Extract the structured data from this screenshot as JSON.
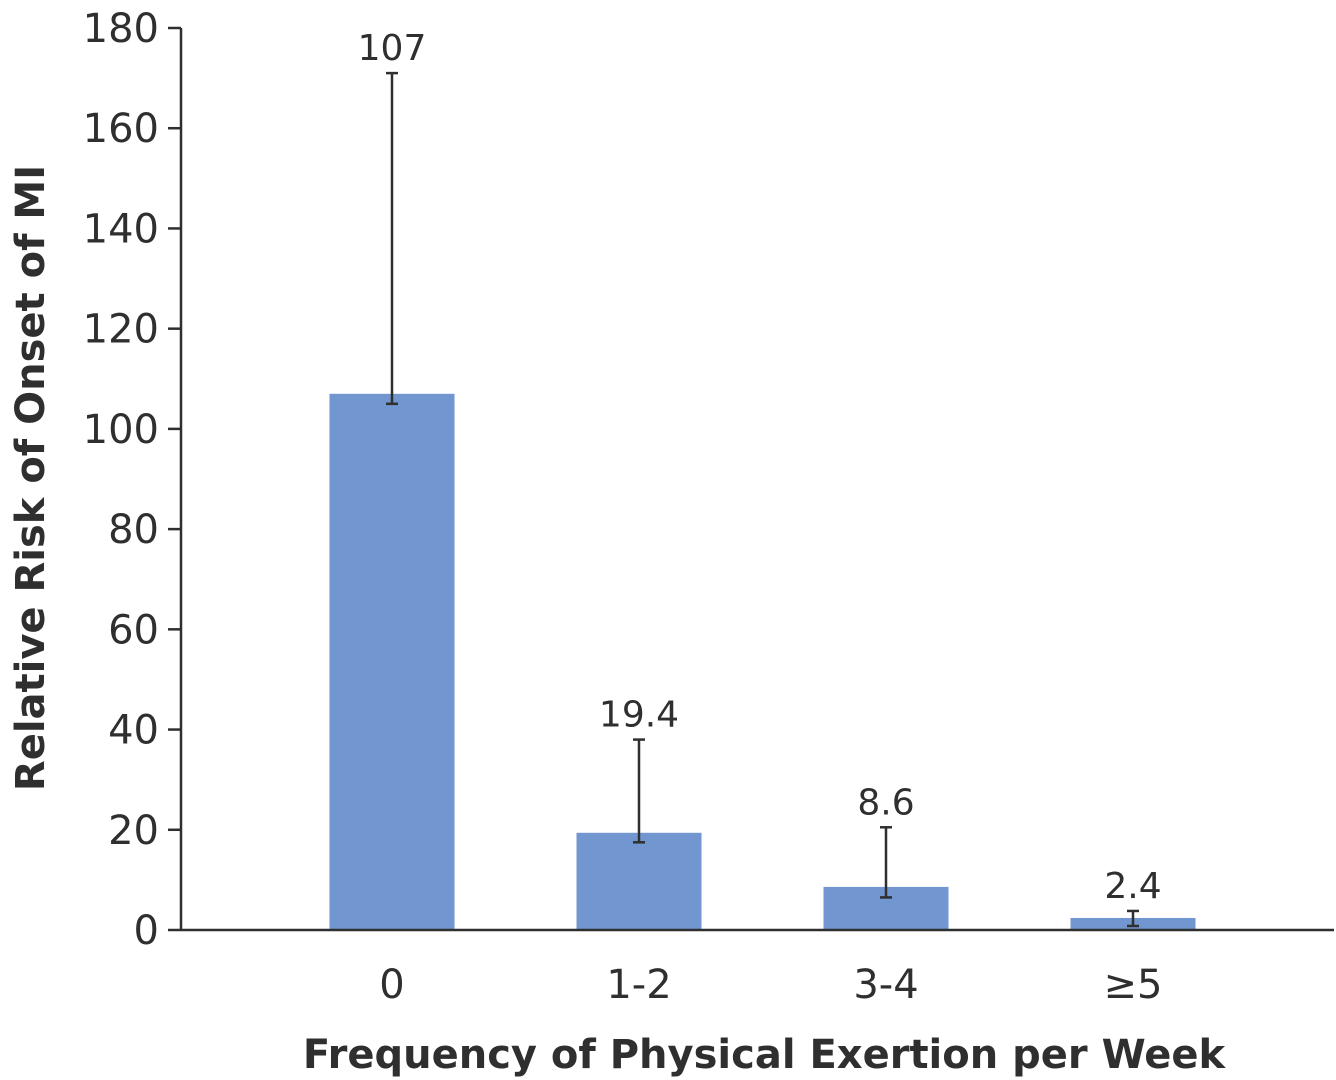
{
  "chart_data": {
    "type": "bar",
    "categories": [
      "0",
      "1-2",
      "3-4",
      "≥5"
    ],
    "values": [
      107,
      19.4,
      8.6,
      2.4
    ],
    "value_labels": [
      "107",
      "19.4",
      "8.6",
      "2.4"
    ],
    "error_bars": {
      "lower": [
        105,
        17.5,
        6.5,
        0.8
      ],
      "upper": [
        171,
        38,
        20.5,
        3.8
      ]
    },
    "xlabel": "Frequency of Physical Exertion per Week",
    "ylabel": "Relative Risk of Onset of MI",
    "ylim": [
      0,
      180
    ],
    "yticks": [
      0,
      20,
      40,
      60,
      80,
      100,
      120,
      140,
      160,
      180
    ],
    "grid": false,
    "colors": {
      "bar": "#7196d0",
      "axis": "#2f2f2f",
      "error_bar": "#2f2f2f",
      "text": "#2f2f2f"
    }
  }
}
